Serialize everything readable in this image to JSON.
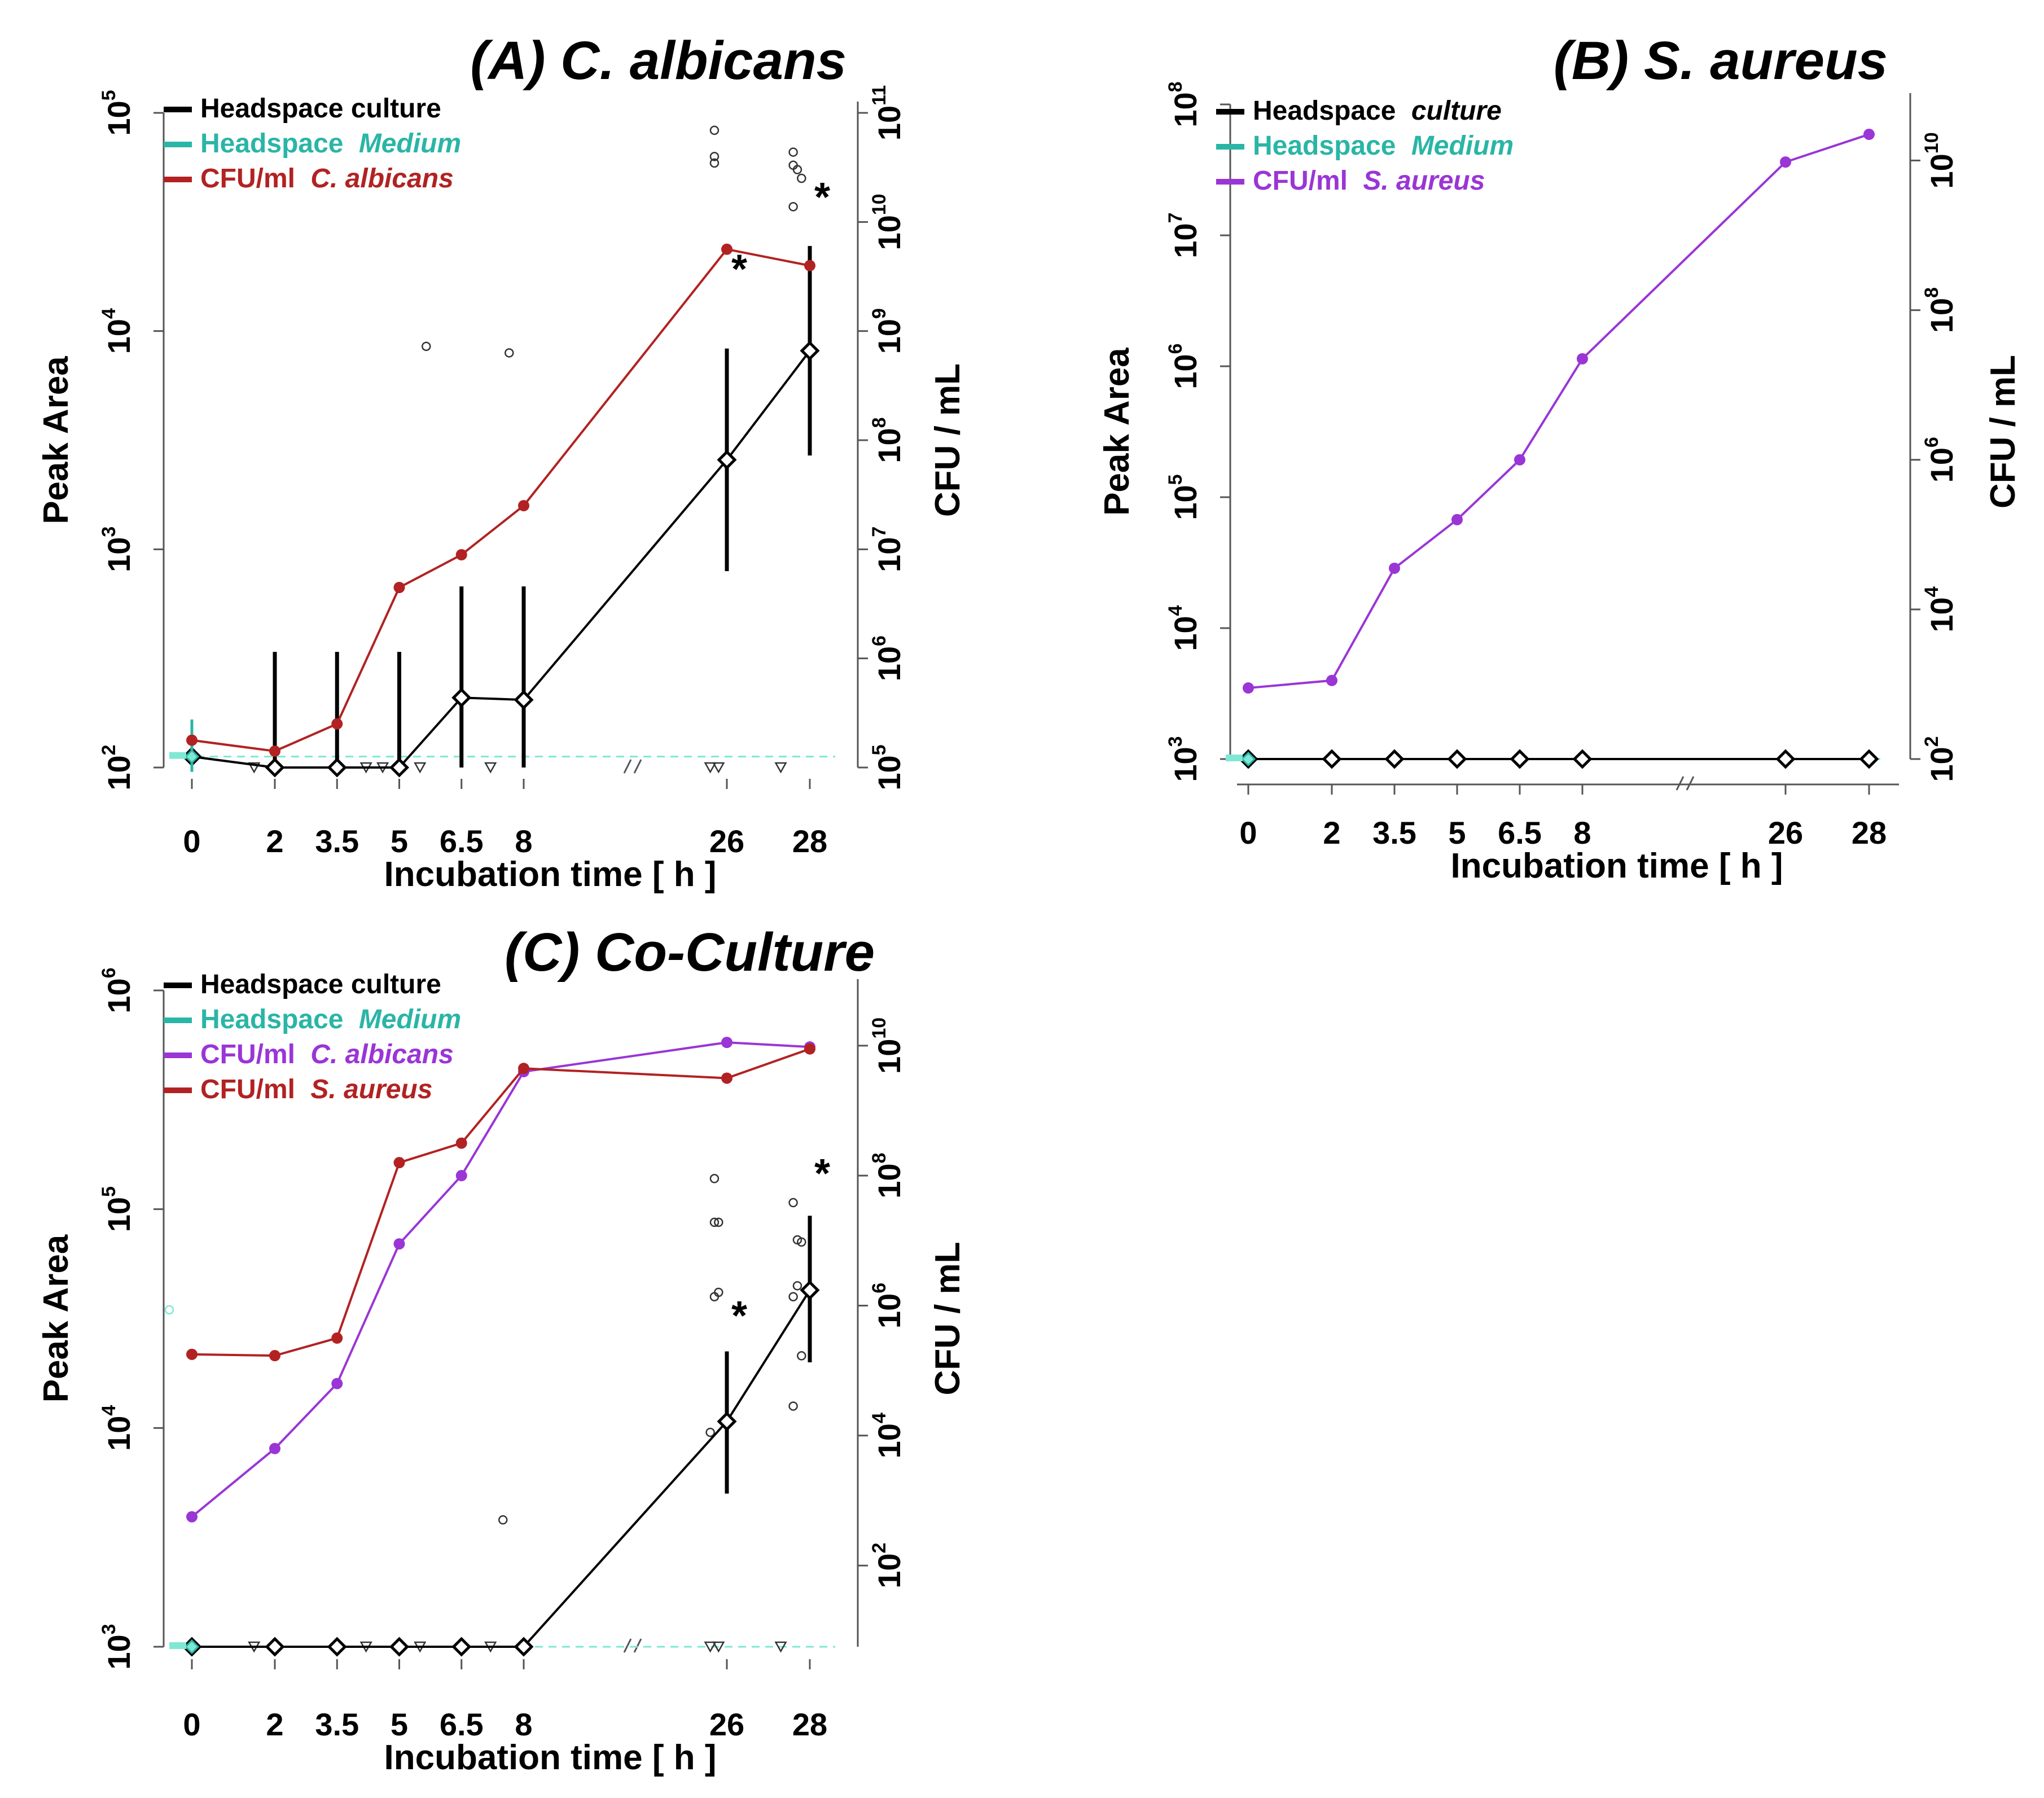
{
  "colors": {
    "black": "#000000",
    "medium": "#2ab5a6",
    "medium_light": "#7fe8d4",
    "red": "#b22222",
    "purple": "#9a35d6"
  },
  "chart_data": [
    {
      "id": "A",
      "type": "line",
      "title": "(A) C. albicans",
      "xlabel": "Incubation time  [ h ]",
      "ylabel": "Peak Area",
      "y2label": "CFU / mL",
      "categories": [
        "0",
        "2",
        "3.5",
        "5",
        "6.5",
        "8",
        "26",
        "28"
      ],
      "yticks": [
        "10^2",
        "10^3",
        "10^4",
        "10^5"
      ],
      "y2ticks": [
        "10^5",
        "10^6",
        "10^7",
        "10^8",
        "10^9",
        "10^10",
        "10^11"
      ],
      "ylim_log10": [
        2,
        5
      ],
      "y2lim_log10": [
        5,
        11
      ],
      "legend": [
        {
          "label": "Headspace culture",
          "prefix": "Headspace culture",
          "italic": "",
          "color": "black"
        },
        {
          "label": "Headspace Medium",
          "prefix": "Headspace",
          "italic": "Medium",
          "color": "medium"
        },
        {
          "label": "CFU/ml  C. albicans",
          "prefix": "CFU/ml",
          "italic": "C. albicans",
          "color": "red"
        }
      ],
      "series": [
        {
          "name": "Headspace culture",
          "axis": "left",
          "color": "black",
          "marker": "diamond",
          "values_log10": [
            2.05,
            2.0,
            2.0,
            2.0,
            2.32,
            2.31,
            3.41,
            3.91
          ],
          "err_lo_log10": [
            null,
            2.0,
            2.0,
            2.0,
            2.0,
            2.0,
            2.9,
            3.43
          ],
          "err_hi_log10": [
            null,
            2.53,
            2.53,
            2.53,
            2.83,
            2.83,
            3.92,
            4.39
          ]
        },
        {
          "name": "Headspace Medium",
          "axis": "left",
          "color": "medium",
          "values_log10": [
            2.05
          ],
          "err_lo_log10": [
            1.98
          ],
          "err_hi_log10": [
            2.22
          ]
        },
        {
          "name": "CFU/ml C. albicans",
          "axis": "right",
          "color": "red",
          "marker": "dot",
          "values_log10": [
            5.25,
            5.15,
            5.4,
            6.65,
            6.95,
            7.4,
            9.75,
            9.6
          ]
        }
      ],
      "outliers_log10": [
        [
          5.65,
          3.93
        ],
        [
          7.65,
          3.9
        ],
        [
          25.7,
          4.92
        ],
        [
          25.7,
          4.8
        ],
        [
          25.7,
          4.77
        ],
        [
          27.6,
          4.82
        ],
        [
          27.6,
          4.76
        ],
        [
          27.7,
          4.74
        ],
        [
          27.8,
          4.7
        ],
        [
          27.6,
          4.57
        ]
      ],
      "censored_log10": [
        [
          1.5,
          2.0
        ],
        [
          4.2,
          2.0
        ],
        [
          4.6,
          2.0
        ],
        [
          5.5,
          2.0
        ],
        [
          7.2,
          2.0
        ],
        [
          25.6,
          2.0
        ],
        [
          25.8,
          2.0
        ],
        [
          27.3,
          2.0
        ]
      ],
      "significance": [
        {
          "x": 26,
          "y_log10": 4.22,
          "label": "*"
        },
        {
          "x": 28,
          "y_log10": 4.55,
          "label": "*"
        }
      ],
      "medium_baseline_log10": 2.05
    },
    {
      "id": "B",
      "type": "line",
      "title": "(B) S. aureus",
      "xlabel": "Incubation time  [ h ]",
      "ylabel": "Peak Area",
      "y2label": "CFU / mL",
      "categories": [
        "0",
        "2",
        "3.5",
        "5",
        "6.5",
        "8",
        "26",
        "28"
      ],
      "yticks": [
        "10^3",
        "10^4",
        "10^5",
        "10^6",
        "10^7",
        "10^8"
      ],
      "y2ticks": [
        "10^2",
        "10^4",
        "10^6",
        "10^8",
        "10^10"
      ],
      "ylim_log10": [
        3,
        8
      ],
      "y2lim_log10": [
        2,
        10.75
      ],
      "legend": [
        {
          "label": "Headspace culture",
          "prefix": "Headspace",
          "italic": "culture",
          "color": "black"
        },
        {
          "label": "Headspace Medium",
          "prefix": "Headspace",
          "italic": "Medium",
          "color": "medium"
        },
        {
          "label": "CFU/ml  S. aureus",
          "prefix": "CFU/ml",
          "italic": "S. aureus",
          "color": "purple"
        }
      ],
      "series": [
        {
          "name": "Headspace culture",
          "axis": "left",
          "color": "black",
          "marker": "diamond",
          "values_log10": [
            3.0,
            3.0,
            3.0,
            3.0,
            3.0,
            3.0,
            3.0,
            3.0
          ]
        },
        {
          "name": "Headspace Medium",
          "axis": "left",
          "color": "medium",
          "values_log10": [
            3.0
          ]
        },
        {
          "name": "CFU/ml S. aureus",
          "axis": "right",
          "color": "purple",
          "marker": "dot",
          "values_log10": [
            2.95,
            3.05,
            4.55,
            5.2,
            6.0,
            7.35,
            9.98,
            10.35
          ]
        }
      ],
      "outliers_log10": [],
      "censored_log10": [],
      "significance": [],
      "medium_baseline_log10": 3.0
    },
    {
      "id": "C",
      "type": "line",
      "title": "(C) Co-Culture",
      "xlabel": "Incubation time  [ h ]",
      "ylabel": "Peak Area",
      "y2label": "CFU / mL",
      "categories": [
        "0",
        "2",
        "3.5",
        "5",
        "6.5",
        "8",
        "26",
        "28"
      ],
      "yticks": [
        "10^3",
        "10^4",
        "10^5",
        "10^6"
      ],
      "y2ticks": [
        "10^2",
        "10^4",
        "10^6",
        "10^8",
        "10^10"
      ],
      "ylim_log10": [
        3,
        6
      ],
      "y2lim_log10": [
        0.75,
        10.85
      ],
      "legend": [
        {
          "label": "Headspace culture",
          "prefix": "Headspace culture",
          "italic": "",
          "color": "black"
        },
        {
          "label": "Headspace Medium",
          "prefix": "Headspace",
          "italic": "Medium",
          "color": "medium"
        },
        {
          "label": "CFU/ml  C. albicans",
          "prefix": "CFU/ml",
          "italic": "C. albicans",
          "color": "purple"
        },
        {
          "label": "CFU/ml  S. aureus",
          "prefix": "CFU/ml",
          "italic": "S. aureus",
          "color": "red"
        }
      ],
      "series": [
        {
          "name": "Headspace culture",
          "axis": "left",
          "color": "black",
          "marker": "diamond",
          "values_log10": [
            3.0,
            3.0,
            3.0,
            3.0,
            3.0,
            3.0,
            4.03,
            4.63
          ],
          "err_lo_log10": [
            null,
            null,
            null,
            null,
            null,
            null,
            3.7,
            4.3
          ],
          "err_hi_log10": [
            null,
            null,
            null,
            null,
            null,
            null,
            4.35,
            4.97
          ]
        },
        {
          "name": "Headspace Medium",
          "axis": "left",
          "color": "medium",
          "values_log10": [
            3.0
          ]
        },
        {
          "name": "CFU/ml C. albicans",
          "axis": "right",
          "color": "purple",
          "marker": "dot",
          "values_log10": [
            2.75,
            3.8,
            4.8,
            6.95,
            8.0,
            9.6,
            10.05,
            9.98
          ]
        },
        {
          "name": "CFU/ml S. aureus",
          "axis": "right",
          "color": "red",
          "marker": "dot",
          "values_log10": [
            5.25,
            5.23,
            5.5,
            8.2,
            8.5,
            9.65,
            9.5,
            9.95
          ]
        }
      ],
      "outliers_log10": [
        [
          25.7,
          5.14
        ],
        [
          25.7,
          4.94
        ],
        [
          25.8,
          4.94
        ],
        [
          25.7,
          4.6
        ],
        [
          25.8,
          4.62
        ],
        [
          25.6,
          3.98
        ],
        [
          27.6,
          5.03
        ],
        [
          27.7,
          4.86
        ],
        [
          27.8,
          4.85
        ],
        [
          27.7,
          4.65
        ],
        [
          27.6,
          4.6
        ],
        [
          27.8,
          4.33
        ],
        [
          27.6,
          4.1
        ],
        [
          7.5,
          3.58
        ],
        [
          -0.5,
          4.54
        ]
      ],
      "censored_log10": [
        [
          1.5,
          3.0
        ],
        [
          4.2,
          3.0
        ],
        [
          5.5,
          3.0
        ],
        [
          7.2,
          3.0
        ],
        [
          25.6,
          3.0
        ],
        [
          25.8,
          3.0
        ],
        [
          27.3,
          3.0
        ]
      ],
      "significance": [
        {
          "x": 26,
          "y_log10": 4.45,
          "label": "*"
        },
        {
          "x": 28,
          "y_log10": 5.1,
          "label": "*"
        }
      ],
      "medium_baseline_log10": 3.0
    }
  ]
}
